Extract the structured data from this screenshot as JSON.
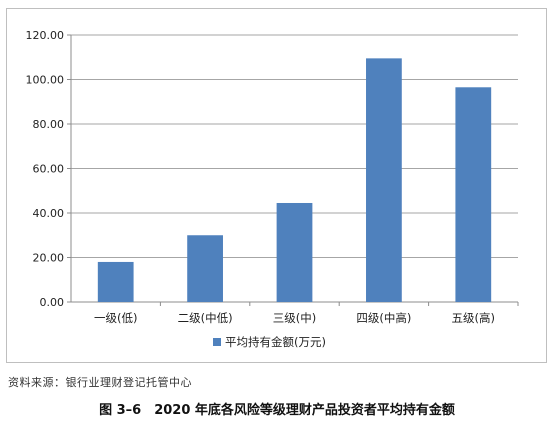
{
  "chart_data": {
    "type": "bar",
    "categories": [
      "一级(低)",
      "二级(中低)",
      "三级(中)",
      "四级(中高)",
      "五级(高)"
    ],
    "series": [
      {
        "name": "平均持有金额(万元)",
        "values": [
          18,
          30,
          44.5,
          109.5,
          96.5
        ],
        "color": "#4f81bd"
      }
    ],
    "y_ticks": [
      "0.00",
      "20.00",
      "40.00",
      "60.00",
      "80.00",
      "100.00",
      "120.00"
    ],
    "ylim": [
      0,
      120
    ],
    "grid": true,
    "legend_position": "bottom"
  },
  "source_text": "资料来源：银行业理财登记托管中心",
  "caption": "图 3–6　2020 年底各风险等级理财产品投资者平均持有金额"
}
